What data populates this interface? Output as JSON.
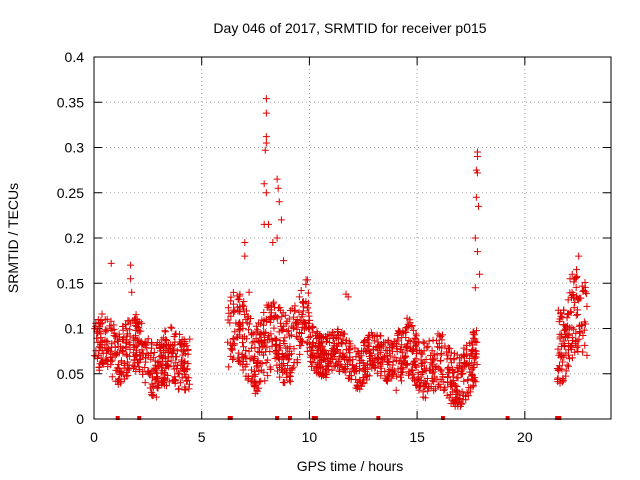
{
  "chart_data": {
    "type": "scatter",
    "title": "Day 046 of 2017, SRMTID for receiver p015",
    "xlabel": "GPS time / hours",
    "ylabel": "SRMTID / TECUs",
    "xlim": [
      0,
      24
    ],
    "ylim": [
      0,
      0.4
    ],
    "xticks": [
      0,
      5,
      10,
      15,
      20
    ],
    "xtick_labels": [
      "0",
      "5",
      "10",
      "15",
      "20"
    ],
    "yticks": [
      0,
      0.05,
      0.1,
      0.15,
      0.2,
      0.25,
      0.3,
      0.35,
      0.4
    ],
    "ytick_labels": [
      "0",
      "0.05",
      "0.1",
      "0.15",
      "0.2",
      "0.25",
      "0.3",
      "0.35",
      "0.4"
    ],
    "grid": true,
    "marker": "+",
    "color": "#e00000",
    "segments": [
      {
        "x_start": 0.0,
        "x_end": 4.5,
        "low": 0.03,
        "high": 0.11
      },
      {
        "x_start": 6.2,
        "x_end": 10.0,
        "low": 0.04,
        "high": 0.14
      },
      {
        "x_start": 10.0,
        "x_end": 14.0,
        "low": 0.04,
        "high": 0.1
      },
      {
        "x_start": 14.0,
        "x_end": 17.8,
        "low": 0.02,
        "high": 0.1
      },
      {
        "x_start": 21.5,
        "x_end": 22.9,
        "low": 0.05,
        "high": 0.16
      }
    ],
    "highlights": [
      {
        "x": 0.8,
        "y": 0.172
      },
      {
        "x": 1.7,
        "y": 0.17
      },
      {
        "x": 1.7,
        "y": 0.155
      },
      {
        "x": 1.75,
        "y": 0.14
      },
      {
        "x": 7.0,
        "y": 0.195
      },
      {
        "x": 7.0,
        "y": 0.18
      },
      {
        "x": 7.2,
        "y": 0.14
      },
      {
        "x": 8.0,
        "y": 0.354
      },
      {
        "x": 8.0,
        "y": 0.338
      },
      {
        "x": 8.0,
        "y": 0.312
      },
      {
        "x": 8.0,
        "y": 0.305
      },
      {
        "x": 7.95,
        "y": 0.297
      },
      {
        "x": 7.9,
        "y": 0.26
      },
      {
        "x": 8.0,
        "y": 0.25
      },
      {
        "x": 7.9,
        "y": 0.215
      },
      {
        "x": 8.1,
        "y": 0.215
      },
      {
        "x": 8.3,
        "y": 0.195
      },
      {
        "x": 8.5,
        "y": 0.265
      },
      {
        "x": 8.55,
        "y": 0.255
      },
      {
        "x": 8.6,
        "y": 0.24
      },
      {
        "x": 8.7,
        "y": 0.22
      },
      {
        "x": 8.5,
        "y": 0.2
      },
      {
        "x": 8.8,
        "y": 0.175
      },
      {
        "x": 11.7,
        "y": 0.138
      },
      {
        "x": 11.8,
        "y": 0.135
      },
      {
        "x": 17.8,
        "y": 0.295
      },
      {
        "x": 17.8,
        "y": 0.29
      },
      {
        "x": 17.75,
        "y": 0.275
      },
      {
        "x": 17.8,
        "y": 0.272
      },
      {
        "x": 17.75,
        "y": 0.245
      },
      {
        "x": 17.85,
        "y": 0.235
      },
      {
        "x": 17.7,
        "y": 0.2
      },
      {
        "x": 17.8,
        "y": 0.185
      },
      {
        "x": 17.9,
        "y": 0.16
      },
      {
        "x": 17.7,
        "y": 0.145
      },
      {
        "x": 22.5,
        "y": 0.18
      },
      {
        "x": 22.4,
        "y": 0.165
      },
      {
        "x": 22.2,
        "y": 0.16
      },
      {
        "x": 22.1,
        "y": 0.155
      }
    ],
    "baseline_markers_x": [
      1.1,
      2.1,
      6.3,
      6.35,
      8.5,
      9.1,
      10.2,
      10.3,
      13.2,
      16.2,
      19.2,
      21.5,
      21.6
    ]
  }
}
